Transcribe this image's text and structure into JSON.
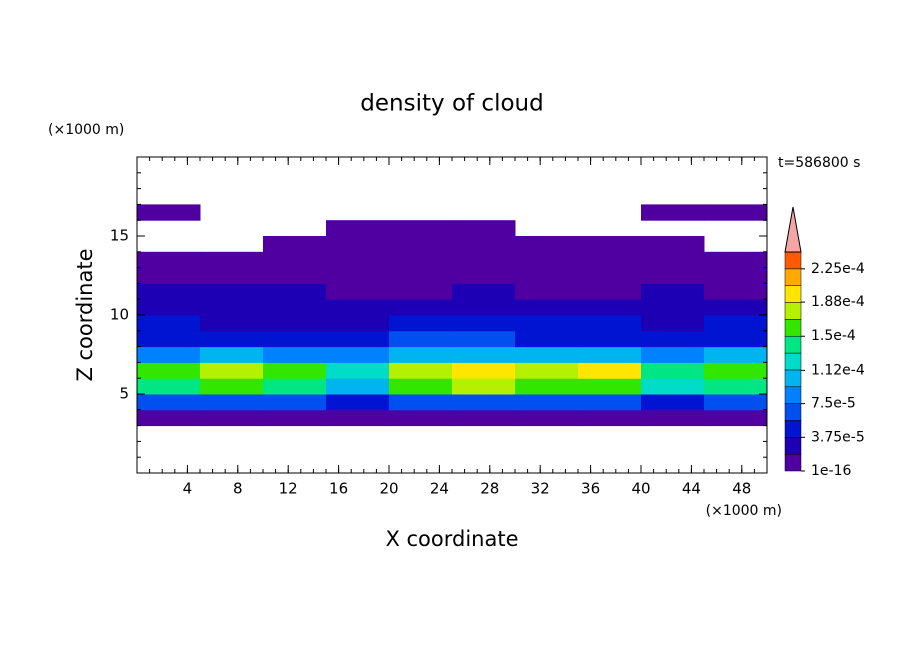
{
  "chart_data": {
    "type": "contour",
    "title": "density of cloud",
    "xlabel": "X coordinate",
    "ylabel": "Z coordinate",
    "x_unit": "(×1000 m)",
    "y_unit": "(×1000 m)",
    "annotation": "t=586800 s",
    "xlim": [
      0,
      50
    ],
    "ylim": [
      0,
      20
    ],
    "xticks": [
      4,
      8,
      12,
      16,
      20,
      24,
      28,
      32,
      36,
      40,
      44,
      48
    ],
    "yticks": [
      5,
      10,
      15
    ],
    "minor_tick_step": 1,
    "x": [
      2.5,
      7.5,
      12.5,
      17.5,
      22.5,
      27.5,
      32.5,
      37.5,
      42.5,
      47.5
    ],
    "y": [
      0.5,
      1.5,
      2.5,
      3.5,
      4.5,
      5.5,
      6.5,
      7.5,
      8.5,
      9.5,
      10.5,
      11.5,
      12.5,
      13.5,
      14.5,
      15.5,
      16.5,
      17.5,
      18.5,
      19.5
    ],
    "z": [
      [
        null,
        null,
        null,
        null,
        null,
        null,
        null,
        null,
        null,
        null
      ],
      [
        null,
        null,
        null,
        null,
        null,
        null,
        null,
        null,
        null,
        null
      ],
      [
        null,
        null,
        null,
        null,
        null,
        null,
        null,
        null,
        null,
        null
      ],
      [
        1.5e-05,
        1.5e-05,
        1.5e-05,
        1.5e-05,
        1.5e-05,
        1.5e-05,
        1.5e-05,
        1.5e-05,
        1.5e-05,
        1.5e-05
      ],
      [
        6e-05,
        6.5e-05,
        6e-05,
        5e-05,
        6e-05,
        7e-05,
        6.5e-05,
        6e-05,
        5.5e-05,
        6e-05
      ],
      [
        0.00014,
        0.00015,
        0.00014,
        0.00011,
        0.00015,
        0.00017,
        0.00016,
        0.00016,
        0.00013,
        0.00014
      ],
      [
        0.00016,
        0.00017,
        0.00016,
        0.00012,
        0.00017,
        0.00019,
        0.00018,
        0.00019,
        0.00014,
        0.00015
      ],
      [
        9e-05,
        0.0001,
        9e-05,
        8e-05,
        0.0001,
        0.00011,
        0.0001,
        0.0001,
        9e-05,
        0.0001
      ],
      [
        5e-05,
        5e-05,
        4.5e-05,
        5e-05,
        6e-05,
        6e-05,
        5.5e-05,
        5e-05,
        5e-05,
        5.5e-05
      ],
      [
        4e-05,
        3e-05,
        3e-05,
        3.5e-05,
        4.5e-05,
        5e-05,
        4.5e-05,
        4e-05,
        3e-05,
        4e-05
      ],
      [
        3e-05,
        3.5e-05,
        2.5e-05,
        3e-05,
        3e-05,
        3.5e-05,
        3e-05,
        2.5e-05,
        2.5e-05,
        3e-05
      ],
      [
        2e-05,
        2.5e-05,
        2e-05,
        1.5e-05,
        1.5e-05,
        2e-05,
        1.5e-05,
        1.5e-05,
        2e-05,
        1.5e-05
      ],
      [
        1e-05,
        1e-05,
        1.2e-05,
        1e-05,
        1e-05,
        1.2e-05,
        1e-05,
        1e-05,
        1e-05,
        1e-05
      ],
      [
        5e-06,
        5e-06,
        5e-06,
        5e-06,
        5e-06,
        5e-06,
        5e-06,
        5e-06,
        5e-06,
        5e-06
      ],
      [
        null,
        null,
        5e-06,
        5e-06,
        5e-06,
        5e-06,
        5e-06,
        5e-06,
        5e-06,
        null
      ],
      [
        null,
        null,
        null,
        5e-06,
        5e-06,
        5e-06,
        null,
        null,
        null,
        null
      ],
      [
        5e-06,
        null,
        null,
        null,
        null,
        null,
        null,
        null,
        5e-06,
        5e-06
      ],
      [
        null,
        null,
        null,
        null,
        null,
        null,
        null,
        null,
        null,
        null
      ],
      [
        null,
        null,
        null,
        null,
        null,
        null,
        null,
        null,
        null,
        null
      ],
      [
        null,
        null,
        null,
        null,
        null,
        null,
        null,
        null,
        null,
        null
      ]
    ],
    "colorbar": {
      "levels": [
        1e-16,
        1.875e-05,
        3.75e-05,
        5.625e-05,
        7.5e-05,
        9.375e-05,
        0.0001125,
        0.00013125,
        0.00015,
        0.00016875,
        0.0001875,
        0.00020625,
        0.000225,
        0.00024375
      ],
      "colors": [
        "#5000a0",
        "#1e00b4",
        "#0014d2",
        "#0050f0",
        "#0082ff",
        "#00b4f0",
        "#00dcc8",
        "#00e682",
        "#32e600",
        "#b4f000",
        "#ffe600",
        "#ffaa00",
        "#ff5a00"
      ],
      "over_color": "#f5a5a5",
      "ticks": [
        {
          "value": 1e-16,
          "label": "1e-16"
        },
        {
          "value": 3.75e-05,
          "label": "3.75e-5"
        },
        {
          "value": 7.5e-05,
          "label": "7.5e-5"
        },
        {
          "value": 0.000112,
          "label": "1.12e-4"
        },
        {
          "value": 0.00015,
          "label": "1.5e-4"
        },
        {
          "value": 0.000188,
          "label": "1.88e-4"
        },
        {
          "value": 0.000225,
          "label": "2.25e-4"
        }
      ]
    }
  }
}
